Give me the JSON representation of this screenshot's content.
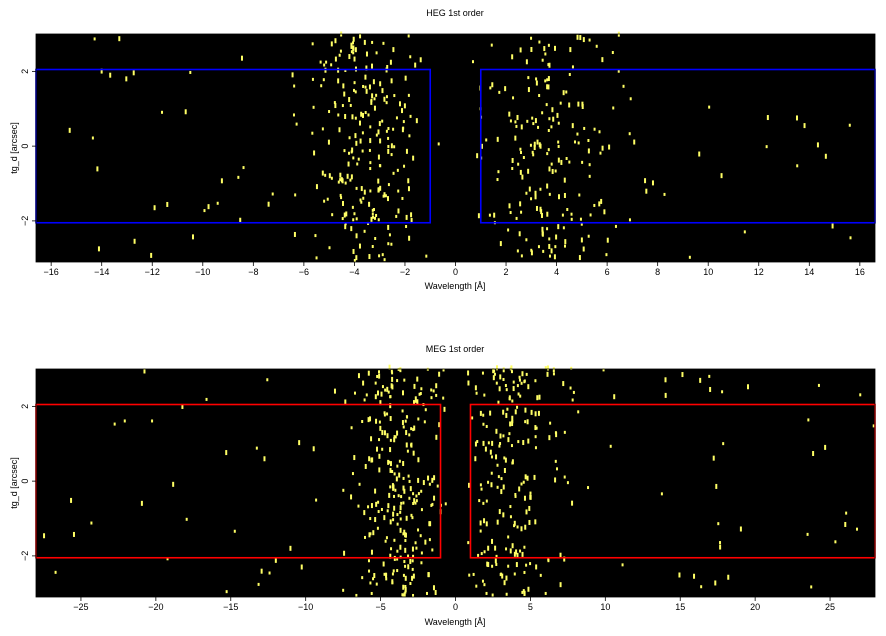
{
  "chart_data": [
    {
      "type": "heatmap",
      "title": "HEG 1st order",
      "xlabel": "Wavelength [Å]",
      "ylabel": "tg_d [arcsec]",
      "xlim": [
        -16.6,
        16.6
      ],
      "ylim": [
        -3.1,
        3.0
      ],
      "xticks": [
        -16,
        -14,
        -12,
        -10,
        -8,
        -6,
        -4,
        -2,
        0,
        2,
        4,
        6,
        8,
        10,
        12,
        14,
        16
      ],
      "xtick_labels": [
        "−16",
        "−14",
        "−12",
        "−10",
        "−8",
        "−6",
        "−4",
        "−2",
        "0",
        "2",
        "4",
        "6",
        "8",
        "10",
        "12",
        "14",
        "16"
      ],
      "yticks": [
        -2,
        0,
        2
      ],
      "ytick_labels": [
        "−2",
        "0",
        "2"
      ],
      "background": "#000000",
      "event_color": "#ffff66",
      "region_color": "#0000ff",
      "regions": [
        {
          "x": [
            -16.6,
            -1.0
          ],
          "y": [
            -2.05,
            2.05
          ]
        },
        {
          "x": [
            1.0,
            16.6
          ],
          "y": [
            -2.05,
            2.05
          ]
        }
      ],
      "event_clusters": [
        {
          "center": -3.6,
          "spread": 1.2,
          "count": 230
        },
        {
          "center": 3.6,
          "spread": 1.4,
          "count": 190
        }
      ],
      "event_background_count": 70
    },
    {
      "type": "heatmap",
      "title": "MEG 1st order",
      "xlabel": "Wavelength [Å]",
      "ylabel": "tg_d [arcsec]",
      "xlim": [
        -28,
        28
      ],
      "ylim": [
        -3.1,
        3.0
      ],
      "xticks": [
        -25,
        -20,
        -15,
        -10,
        -5,
        0,
        5,
        10,
        15,
        20,
        25
      ],
      "xtick_labels": [
        "−25",
        "−20",
        "−15",
        "−10",
        "−5",
        "0",
        "5",
        "10",
        "15",
        "20",
        "25"
      ],
      "yticks": [
        -2,
        0,
        2
      ],
      "ytick_labels": [
        "−2",
        "0",
        "2"
      ],
      "background": "#000000",
      "event_color": "#ffff66",
      "region_color": "#ff0000",
      "regions": [
        {
          "x": [
            -28,
            -1.0
          ],
          "y": [
            -2.05,
            2.05
          ]
        },
        {
          "x": [
            1.0,
            28
          ],
          "y": [
            -2.05,
            2.05
          ]
        }
      ],
      "event_clusters": [
        {
          "center": -3.8,
          "spread": 1.5,
          "count": 260
        },
        {
          "center": 3.6,
          "spread": 1.8,
          "count": 210
        }
      ],
      "event_background_count": 90
    }
  ]
}
